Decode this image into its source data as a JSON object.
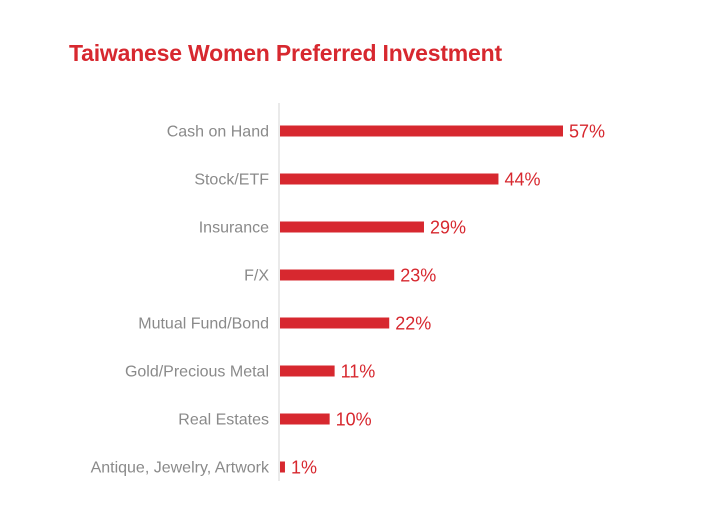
{
  "chart_data": {
    "type": "bar",
    "orientation": "horizontal",
    "title": "Taiwanese Women Preferred Investment",
    "categories": [
      "Cash on Hand",
      "Stock/ETF",
      "Insurance",
      "F/X",
      "Mutual Fund/Bond",
      "Gold/Precious Metal",
      "Real Estates",
      "Antique, Jewelry, Artwork"
    ],
    "values": [
      57,
      44,
      29,
      23,
      22,
      11,
      10,
      1
    ],
    "value_labels": [
      "57%",
      "44%",
      "29%",
      "23%",
      "22%",
      "11%",
      "10%",
      "1%"
    ],
    "unit": "%",
    "xlabel": "",
    "ylabel": "",
    "xlim": [
      0,
      57
    ],
    "grid": false,
    "legend": "none"
  },
  "colors": {
    "bar": "#d7282f",
    "title": "#d7282f",
    "value_label": "#d7282f",
    "category_label": "#8a8a8a",
    "axis_line": "#e3e3e3"
  }
}
